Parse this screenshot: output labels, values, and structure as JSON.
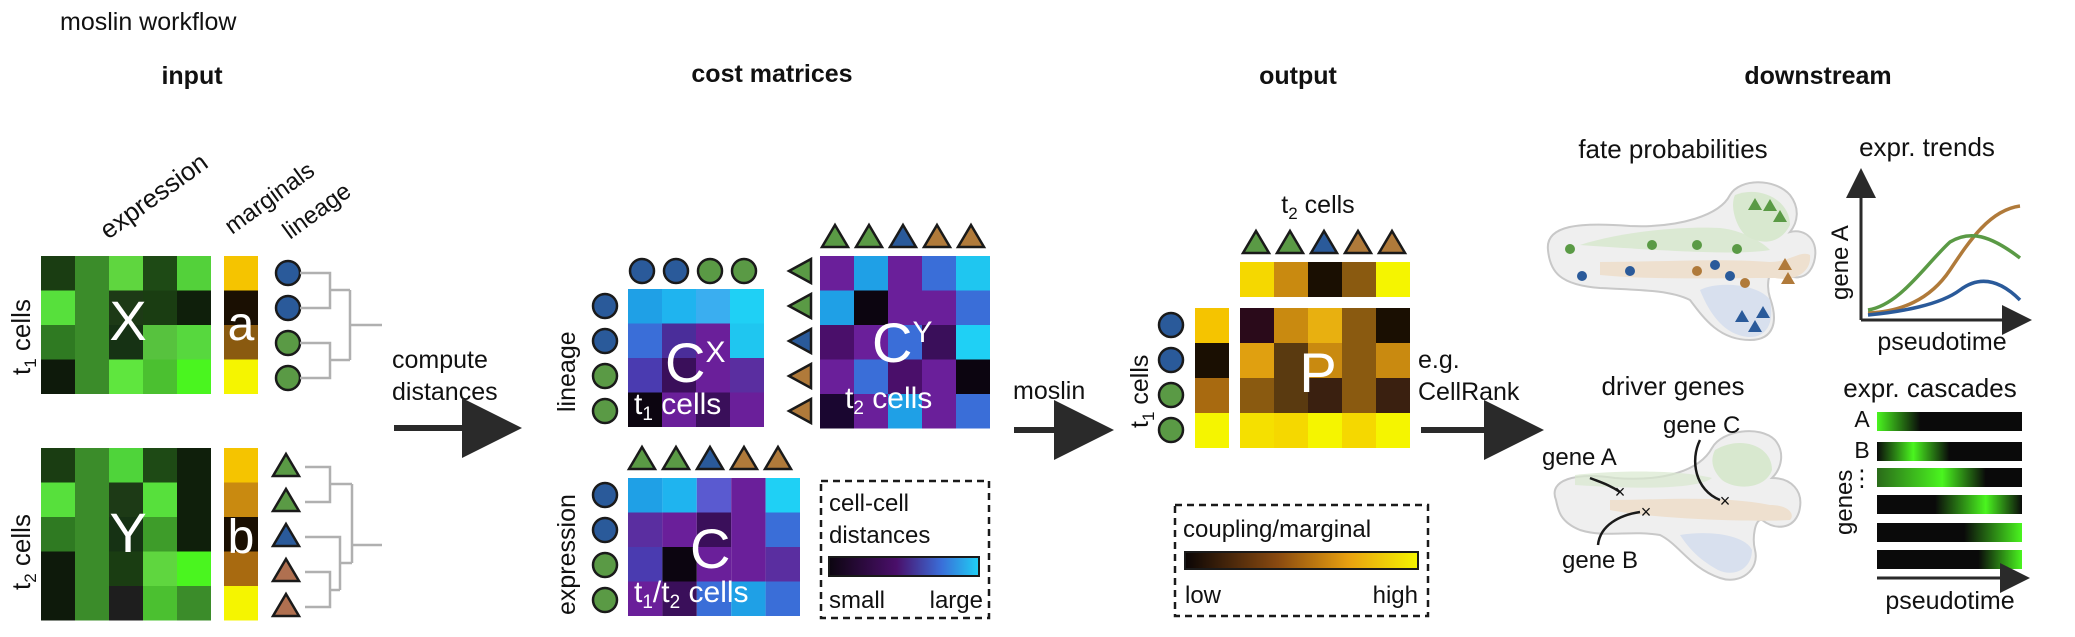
{
  "title": "moslin workflow",
  "sections": {
    "input": "input",
    "cost_matrices": "cost matrices",
    "output": "output",
    "downstream": "downstream"
  },
  "input": {
    "expression_label": "expression",
    "marginals_label": "marginals",
    "lineage_label": "lineage",
    "t1_label": "t",
    "t1_sub": "1",
    "t1_suffix": " cells",
    "t2_label": "t",
    "t2_sub": "2",
    "t2_suffix": " cells",
    "matrix_x": "X",
    "matrix_y": "Y",
    "marg_a": "a",
    "marg_b": "b",
    "x_colors": [
      [
        "#1a3d12",
        "#3b8c2a",
        "#5fd63f",
        "#1e4a15",
        "#53d13a"
      ],
      [
        "#57e03c",
        "#3b8c2a",
        "#1d3a16",
        "#1a3d12",
        "#0f1f0b"
      ],
      [
        "#2f7a22",
        "#3b8c2a",
        "#163214",
        "#57c23e",
        "#57d83e"
      ],
      [
        "#0e1a0b",
        "#3b8c2a",
        "#5fe63e",
        "#4bc030",
        "#4af51f"
      ]
    ],
    "y_colors": [
      [
        "#1a3d12",
        "#3b8c2a",
        "#4fd43a",
        "#1e4a15",
        "#0f1f0b"
      ],
      [
        "#57e03c",
        "#3b8c2a",
        "#1d3a16",
        "#57e03c",
        "#0f1f0b"
      ],
      [
        "#2f7a22",
        "#3b8c2a",
        "#163214",
        "#3e9c2a",
        "#0f1f0b"
      ],
      [
        "#0e1a0b",
        "#3b8c2a",
        "#1a3d12",
        "#5fd63f",
        "#4af51f"
      ],
      [
        "#0e1a0b",
        "#3b8c2a",
        "#1e1e1e",
        "#4bc030",
        "#3b8c2a"
      ]
    ],
    "a_colors": [
      "#f5c400",
      "#1a0f02",
      "#8a5a10",
      "#f5f500"
    ],
    "b_colors": [
      "#f5c400",
      "#c98a10",
      "#1a0f02",
      "#a86a10",
      "#f5f500"
    ]
  },
  "arrows": {
    "compute_line1": "compute",
    "compute_line2": "distances",
    "moslin": "moslin",
    "eg_line1": "e.g.",
    "eg_line2": "CellRank"
  },
  "cost": {
    "lineage_label": "lineage",
    "expression_label": "expression",
    "cx_label": "C",
    "cx_sup": "X",
    "cx_sub_text": "t",
    "cx_sub_num": "1",
    "cx_sub_suffix": " cells",
    "cy_label": "C",
    "cy_sup": "Y",
    "cy_sub_text": "t",
    "cy_sub_num": "2",
    "cy_sub_suffix": " cells",
    "c_label": "C",
    "c_sub_pre": "t",
    "c_sub_num1": "1",
    "c_sub_slash": "/t",
    "c_sub_num2": "2",
    "c_sub_suffix": " cells",
    "legend_line1": "cell-cell",
    "legend_line2": "distances",
    "legend_small": "small",
    "legend_large": "large",
    "cx_colors": [
      [
        "#1fa0e6",
        "#1fb4ef",
        "#3aaef0",
        "#1fd0f5"
      ],
      [
        "#3a6ed8",
        "#4a2d9a",
        "#6a1f9a",
        "#1fc6f0"
      ],
      [
        "#4a3bb0",
        "#3a0f5a",
        "#6a1f9a",
        "#5a2ea0"
      ],
      [
        "#0c0510",
        "#6a1f9a",
        "#3a0f5a",
        "#6a1f9a"
      ]
    ],
    "cy_colors": [
      [
        "#6a1f9a",
        "#1fa0e6",
        "#6a1f9a",
        "#3a6ed8",
        "#1fc6f0"
      ],
      [
        "#1fa0e6",
        "#0c0510",
        "#6a1f9a",
        "#6a1f9a",
        "#3a6ed8"
      ],
      [
        "#4a0f6a",
        "#6a1f9a",
        "#3a6ed8",
        "#3a0f5a",
        "#1fd0f5"
      ],
      [
        "#6a1f9a",
        "#3a6ed8",
        "#4a0f6a",
        "#6a1f9a",
        "#0c0510"
      ],
      [
        "#1a0630",
        "#6a1f9a",
        "#1fa0e6",
        "#6a1f9a",
        "#3a6ed8"
      ]
    ],
    "c_colors": [
      [
        "#1fa0e6",
        "#1fb4ef",
        "#5a5ad0",
        "#6a1f9a",
        "#1fd0f5"
      ],
      [
        "#5a2ea0",
        "#6a1f9a",
        "#3a0f5a",
        "#6a1f9a",
        "#3a6ed8"
      ],
      [
        "#4a3bb0",
        "#0c0510",
        "#6a1f9a",
        "#6a1f9a",
        "#5a2ea0"
      ],
      [
        "#6a1f9a",
        "#3a0f5a",
        "#3a6ed8",
        "#1fa0e6",
        "#3a6ed8"
      ]
    ]
  },
  "output": {
    "t2_label": "t",
    "t2_sub": "2",
    "t2_suffix": " cells",
    "t1_label": "t",
    "t1_sub": "1",
    "t1_suffix": " cells",
    "p_label": "P",
    "legend_title": "coupling/marginal",
    "legend_low": "low",
    "legend_high": "high",
    "top_marg_colors": [
      "#f5d800",
      "#c98a10",
      "#1a0f02",
      "#8a5a10",
      "#f5f500"
    ],
    "left_marg_colors": [
      "#f5c400",
      "#1a0f02",
      "#a86a10",
      "#f5f500"
    ],
    "p_colors": [
      [
        "#2a0a1a",
        "#c98a10",
        "#e8b010",
        "#8a5a10",
        "#1a0f02"
      ],
      [
        "#e0a010",
        "#5a3a10",
        "#c98a10",
        "#8a5a10",
        "#c98a10"
      ],
      [
        "#8a5a10",
        "#5a3a10",
        "#3a2010",
        "#8a5a10",
        "#3a2010"
      ],
      [
        "#f5e000",
        "#f5d800",
        "#f5f500",
        "#f5d800",
        "#f5f500"
      ]
    ]
  },
  "downstream": {
    "fate_title": "fate probabilities",
    "trends_title": "expr. trends",
    "trends_ylabel": "gene A",
    "trends_xlabel": "pseudotime",
    "driver_title": "driver genes",
    "gene_a": "gene A",
    "gene_b": "gene B",
    "gene_c": "gene C",
    "cascades_title": "expr. cascades",
    "cascade_rows": [
      "A",
      "B",
      "⋮",
      "",
      "",
      ""
    ],
    "cascades_ylabel": "genes",
    "cascades_xlabel": "pseudotime"
  },
  "colors": {
    "green": "#5a9a45",
    "blue": "#2a5a9a",
    "brown": "#b07a3a",
    "tree": "#b0b0b0",
    "arrow": "#2a2a2a"
  }
}
